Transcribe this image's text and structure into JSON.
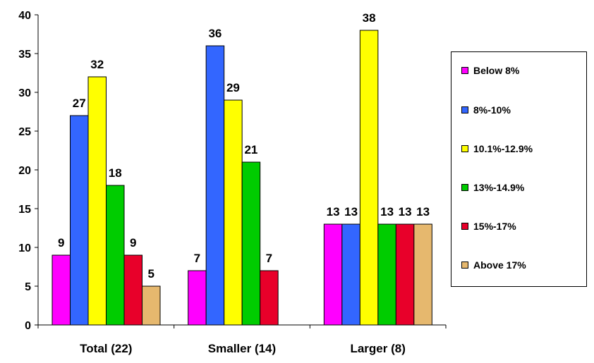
{
  "chart_data": {
    "type": "bar",
    "categories": [
      "Total (22)",
      "Smaller (14)",
      "Larger (8)"
    ],
    "series": [
      {
        "name": "Below 8%",
        "color": "#FF00FF",
        "values": [
          9,
          7,
          13
        ]
      },
      {
        "name": "8%-10%",
        "color": "#3366FF",
        "values": [
          27,
          36,
          13
        ]
      },
      {
        "name": "10.1%-12.9%",
        "color": "#FFFF00",
        "values": [
          32,
          29,
          38
        ]
      },
      {
        "name": "13%-14.9%",
        "color": "#00CC00",
        "values": [
          18,
          21,
          13
        ]
      },
      {
        "name": "15%-17%",
        "color": "#E8002A",
        "values": [
          9,
          7,
          13
        ]
      },
      {
        "name": "Above 17%",
        "color": "#E6B86E",
        "values": [
          5,
          null,
          13
        ]
      }
    ],
    "ylim": [
      0,
      40
    ],
    "yticks": [
      0,
      5,
      10,
      15,
      20,
      25,
      30,
      35,
      40
    ],
    "title": "",
    "xlabel": "",
    "ylabel": "",
    "grid": false,
    "legend_position": "right"
  }
}
